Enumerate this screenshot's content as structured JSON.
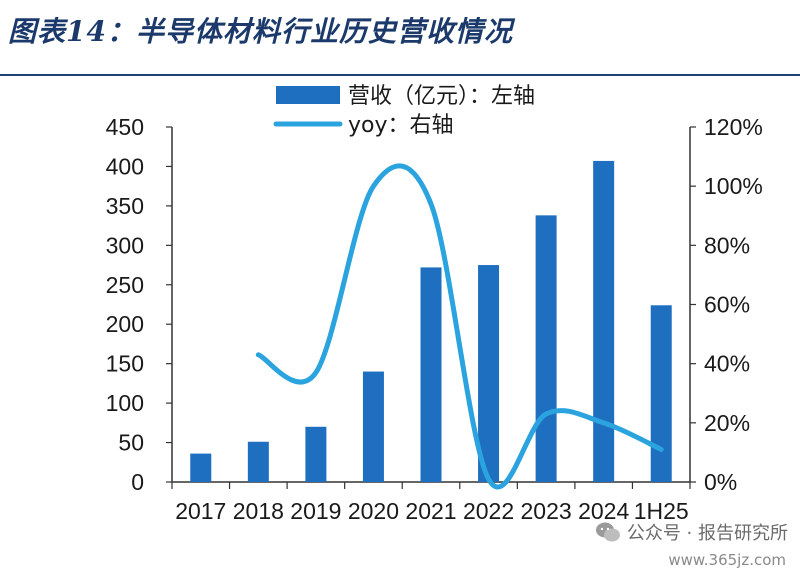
{
  "title": "图表14：半导体材料行业历史营收情况",
  "watermark": {
    "text": "公众号 · 报告研究所",
    "site": "www.365jz.com"
  },
  "chart_data": {
    "type": "bar",
    "categories": [
      "2017",
      "2018",
      "2019",
      "2020",
      "2021",
      "2022",
      "2023",
      "2024",
      "1H25"
    ],
    "series": [
      {
        "name": "营收（亿元）：左轴",
        "type": "bar",
        "axis": "left",
        "values": [
          36,
          51,
          70,
          140,
          272,
          275,
          338,
          407,
          224
        ],
        "color": "#1e6fbf"
      },
      {
        "name": "yoy：右轴",
        "type": "line",
        "axis": "right",
        "smooth": true,
        "values": [
          null,
          0.43,
          0.37,
          1.0,
          0.94,
          0.01,
          0.23,
          0.2,
          0.11
        ],
        "color": "#2aa3de"
      }
    ],
    "y_left": {
      "ylim": [
        0,
        450
      ],
      "ticks": [
        "0",
        "50",
        "100",
        "150",
        "200",
        "250",
        "300",
        "350",
        "400",
        "450"
      ]
    },
    "y_right": {
      "ylim": [
        0,
        1.2
      ],
      "ticks": [
        "0%",
        "20%",
        "40%",
        "60%",
        "80%",
        "100%",
        "120%"
      ]
    },
    "legend_position": "top-center",
    "grid": false
  }
}
